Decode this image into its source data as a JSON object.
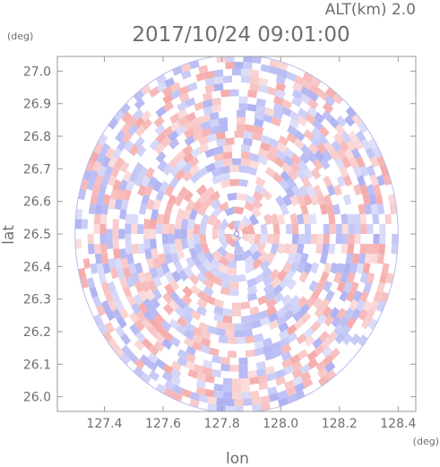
{
  "header": {
    "altitude_label": "ALT(km) 2.0",
    "timestamp": "2017/10/24 09:01:00"
  },
  "chart_data": {
    "type": "heatmap",
    "title": "2017/10/24 09:01:00",
    "xlabel": "lon",
    "ylabel": "lat",
    "x_unit": "(deg)",
    "y_unit": "(deg)",
    "xlim": [
      127.24,
      128.46
    ],
    "ylim": [
      25.955,
      27.045
    ],
    "x_ticks": [
      "127.4",
      "127.6",
      "127.8",
      "128.0",
      "128.2",
      "128.4"
    ],
    "y_ticks": [
      "26.0",
      "26.1",
      "26.2",
      "26.3",
      "26.4",
      "26.5",
      "26.6",
      "26.7",
      "26.8",
      "26.9",
      "27.0"
    ],
    "center": {
      "lon": 127.85,
      "lat": 26.5
    },
    "radius_deg": 0.55,
    "colormap": {
      "positive": "#f4a0a0",
      "negative": "#a4a8f0",
      "neutral": "#ffffff"
    },
    "grid": false
  }
}
